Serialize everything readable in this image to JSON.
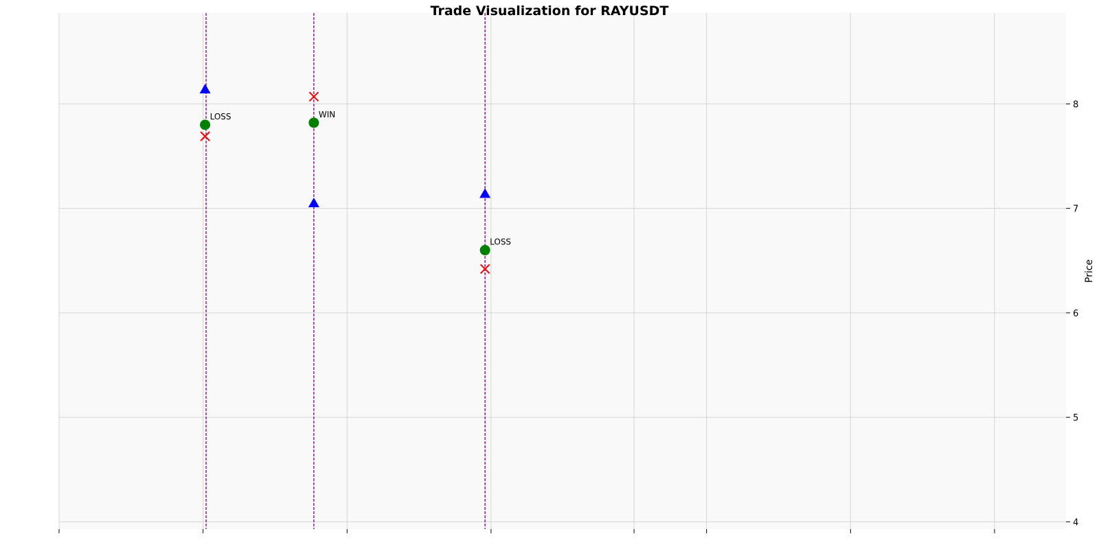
{
  "chart_data": {
    "type": "scatter",
    "title": "Trade Visualization for RAYUSDT",
    "ylabel": "Price",
    "xlabel": "",
    "ylim": [
      3.93,
      8.87
    ],
    "xlim": [
      0,
      1
    ],
    "y_ticks": [
      4,
      5,
      6,
      7,
      8
    ],
    "y_tick_labels": [
      "4",
      "5",
      "6",
      "7",
      "8"
    ],
    "x_ticks": [
      0.0,
      0.143,
      0.286,
      0.429,
      0.571,
      0.643,
      0.786,
      0.929
    ],
    "x_tick_labels": [],
    "y_axis_position": "right",
    "grid": true,
    "colors": {
      "background": "#f9f9f9",
      "grid": "#d4d4d4",
      "entry": "#0000ff",
      "exit": "#ff0000",
      "result": "#008000",
      "trade_line": "#800080"
    },
    "trades": [
      {
        "x": 0.145,
        "x_line": 0.146,
        "entry_price": 8.14,
        "exit_price": 7.69,
        "result_price": 7.8,
        "result": "LOSS"
      },
      {
        "x": 0.253,
        "x_line": 0.253,
        "entry_price": 7.05,
        "exit_price": 8.07,
        "result_price": 7.82,
        "result": "WIN"
      },
      {
        "x": 0.423,
        "x_line": 0.423,
        "entry_price": 7.14,
        "exit_price": 6.42,
        "result_price": 6.6,
        "result": "LOSS"
      }
    ]
  }
}
